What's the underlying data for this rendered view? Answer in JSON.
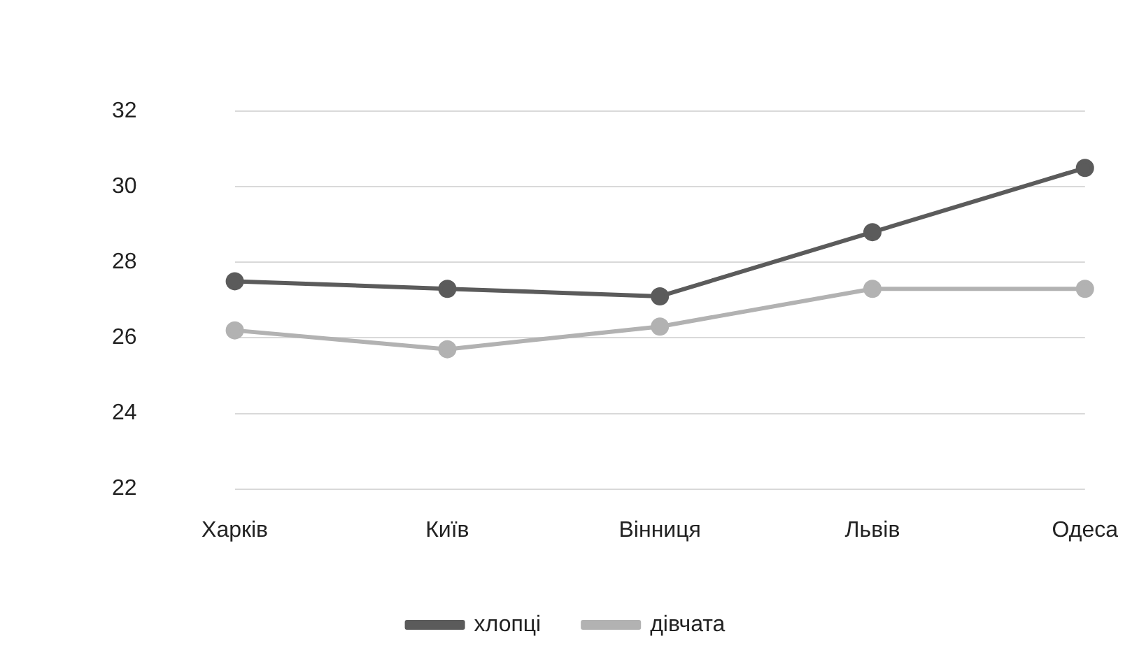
{
  "chart_data": {
    "type": "line",
    "categories": [
      "Харків",
      "Київ",
      "Вінниця",
      "Львів",
      "Одеса"
    ],
    "series": [
      {
        "name": "хлопці",
        "color": "#5b5b5b",
        "values": [
          27.5,
          27.3,
          27.1,
          28.8,
          30.5
        ]
      },
      {
        "name": "дівчата",
        "color": "#b2b2b2",
        "values": [
          26.2,
          25.7,
          26.3,
          27.3,
          27.3
        ]
      }
    ],
    "ylim": [
      22,
      32
    ],
    "yticks": [
      22,
      24,
      26,
      28,
      30,
      32
    ],
    "grid": "y",
    "legend": "bottom",
    "marker": "circle",
    "line_style": "solid"
  }
}
